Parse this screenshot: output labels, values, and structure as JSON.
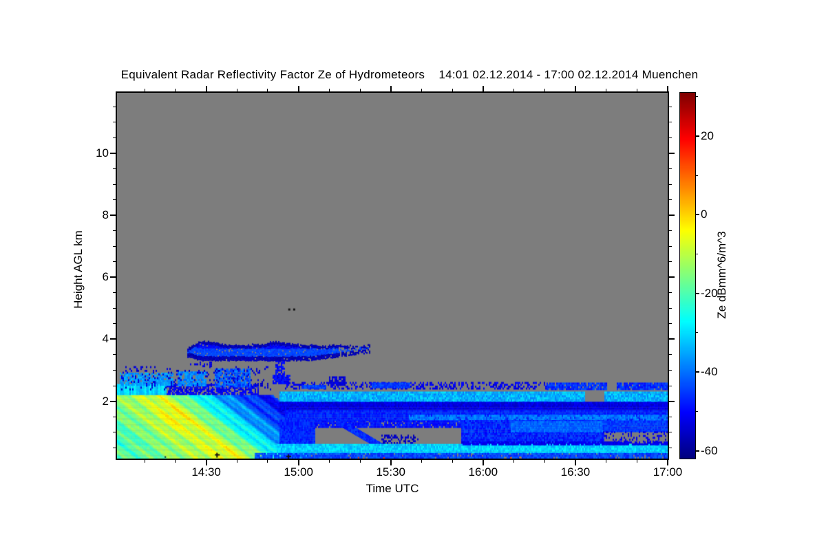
{
  "page": {
    "background": "#ffffff"
  },
  "chart_data": {
    "type": "heatmap",
    "title": "Equivalent Radar Reflectivity Factor Ze of Hydrometeors    14:01 02.12.2014 - 17:00 02.12.2014 Muenchen",
    "station": "Muenchen",
    "time_start": "14:01 02.12.2014",
    "time_end": "17:00 02.12.2014",
    "xlabel": "Time UTC",
    "ylabel": "Height AGL km",
    "x_axis": {
      "start_minutes": 0,
      "end_minutes": 179,
      "tick_labels": [
        "14:30",
        "15:00",
        "15:30",
        "16:00",
        "16:30",
        "17:00"
      ],
      "tick_minutes": [
        29,
        59,
        89,
        119,
        149,
        179
      ],
      "minor_first_minute": 9,
      "minor_step_minutes": 10
    },
    "y_axis": {
      "min_km": 0.15,
      "max_km": 11.95,
      "tick_labels": [
        "2",
        "4",
        "6",
        "8",
        "10"
      ],
      "tick_values": [
        2,
        4,
        6,
        8,
        10
      ],
      "minor_step_km": 0.5
    },
    "colorbar": {
      "label": "Ze dBmm^6/m^3",
      "min": -62,
      "max": 31,
      "tick_values": [
        20,
        0,
        -20,
        -40,
        -60
      ],
      "tick_labels": [
        "20",
        "0",
        "-20",
        "-40",
        "-60"
      ],
      "minor_tick_values": [
        30,
        10,
        -10,
        -30,
        -50
      ],
      "colormap": "jet"
    },
    "no_signal_color": "#7d7d7d",
    "axis_color": "#000000",
    "grid": false,
    "features": [
      {
        "name": "precip-fallstreak-wedge",
        "type": "wedge",
        "t": [
          0,
          62
        ],
        "h": [
          0.15,
          2.52
        ],
        "slope_min_per_km": 13,
        "profile": [
          [
            -40,
            -21
          ],
          [
            -22,
            -21
          ],
          [
            8,
            -7
          ],
          [
            26,
            -33
          ],
          [
            40,
            -48
          ],
          [
            70,
            -52
          ]
        ],
        "bump": {
          "t": 18,
          "h": 1.4,
          "amp": 4.5
        },
        "top_band_h": 2.18,
        "hole_t": 62,
        "hole_h": 1.36,
        "fade_te": 46,
        "seed": 11
      },
      {
        "name": "cyan-layer-2km",
        "type": "band",
        "t": [
          53,
          179
        ],
        "h": [
          1.95,
          2.3
        ],
        "db": -34,
        "var": 5,
        "gaps": [
          [
            152,
            158
          ]
        ],
        "seed": 21
      },
      {
        "name": "dark-blue-layer",
        "type": "band",
        "t": [
          53,
          179
        ],
        "h": [
          1.68,
          1.95
        ],
        "db": -53,
        "var": 3,
        "seed": 22
      },
      {
        "name": "mid-blue-layer",
        "type": "band",
        "t": [
          55,
          179
        ],
        "h": [
          1.35,
          1.68
        ],
        "db": -47,
        "var": 3,
        "seed": 23
      },
      {
        "name": "cyan-streak-15km",
        "type": "band",
        "t": [
          95,
          179
        ],
        "h": [
          1.38,
          1.56
        ],
        "db": -39,
        "var": 3,
        "gap_prob": 0.15,
        "seed": 24
      },
      {
        "name": "lower-blue-left",
        "type": "band",
        "t": [
          53,
          64
        ],
        "h": [
          0.5,
          1.35
        ],
        "db": -47,
        "var": 3,
        "seed": 25
      },
      {
        "name": "lower-top-edge",
        "type": "band",
        "t": [
          64,
          115
        ],
        "h": [
          1.14,
          1.35
        ],
        "db": -49,
        "var": 3,
        "gap_prob": 0.12,
        "seed": 26
      },
      {
        "name": "hole-diagonal-streak",
        "type": "diag",
        "from": [
          72,
          1.32
        ],
        "to": [
          86,
          0.5
        ],
        "width_km": 0.22,
        "db": -47,
        "var": 3,
        "seed": 27
      },
      {
        "name": "hole-speckles",
        "type": "band",
        "t": [
          86,
          98
        ],
        "h": [
          0.5,
          0.9
        ],
        "db": -56,
        "var": 2,
        "gap_prob": 0.55,
        "seed": 28
      },
      {
        "name": "lower-blue-mid",
        "type": "band",
        "t": [
          112,
          158
        ],
        "h": [
          0.55,
          1.35
        ],
        "db": -47,
        "var": 4,
        "seed": 29
      },
      {
        "name": "lower-bright-mid",
        "type": "band",
        "t": [
          128,
          162
        ],
        "h": [
          1.0,
          1.32
        ],
        "db": -41,
        "var": 3,
        "seed": 30
      },
      {
        "name": "lower-right-blue",
        "type": "band",
        "t": [
          158,
          179
        ],
        "h": [
          1.0,
          1.35
        ],
        "db": -45,
        "var": 3,
        "seed": 31
      },
      {
        "name": "lower-right-speckles",
        "type": "band",
        "t": [
          158,
          179
        ],
        "h": [
          0.55,
          1.0
        ],
        "db": -52,
        "var": 2,
        "gap_prob": 0.7,
        "seed": 32
      },
      {
        "name": "bottom-cyan-stripe",
        "type": "band",
        "t": [
          52,
          179
        ],
        "h": [
          0.32,
          0.58
        ],
        "db": -31,
        "var": 4,
        "seed": 33
      },
      {
        "name": "bottom-edge-layer",
        "type": "band",
        "t": [
          45,
          179
        ],
        "h": [
          0.15,
          0.32
        ],
        "db": -44,
        "var": 4,
        "gap_prob": 0.06,
        "seed": 34
      },
      {
        "name": "bottom-dark-row",
        "type": "band",
        "t": [
          112,
          179
        ],
        "h": [
          0.58,
          0.68
        ],
        "db": -52,
        "var": 2,
        "gap_prob": 0.2,
        "seed": 35
      },
      {
        "name": "thin-25km-speckle",
        "type": "band",
        "t": [
          55,
          140
        ],
        "h": [
          2.38,
          2.58
        ],
        "db": -52,
        "var": 3,
        "gap_prob": 0.55,
        "seed": 36
      },
      {
        "name": "thin-25km-bright-a",
        "type": "band",
        "t": [
          60,
          68
        ],
        "h": [
          2.4,
          2.52
        ],
        "db": -44,
        "var": 3,
        "seed": 37
      },
      {
        "name": "thin-25km-bright-b",
        "type": "band",
        "t": [
          83,
          95
        ],
        "h": [
          2.42,
          2.55
        ],
        "db": -45,
        "var": 3,
        "seed": 38
      },
      {
        "name": "thin-25km-right",
        "type": "band",
        "t": [
          140,
          179
        ],
        "h": [
          2.36,
          2.6
        ],
        "db": -46,
        "var": 4,
        "gap_prob": 0.12,
        "gaps": [
          [
            159,
            162
          ]
        ],
        "seed": 39
      },
      {
        "name": "broken-mid-blob-1",
        "type": "band",
        "t": [
          1,
          18
        ],
        "h": [
          2.5,
          2.92
        ],
        "db": -36,
        "var": 4,
        "gap_prob": 0.18,
        "seed": 40
      },
      {
        "name": "broken-mid-blob-2",
        "type": "band",
        "t": [
          20,
          29
        ],
        "h": [
          2.48,
          2.95
        ],
        "db": -38,
        "var": 4,
        "gap_prob": 0.15,
        "seed": 41
      },
      {
        "name": "broken-mid-blob-3",
        "type": "band",
        "t": [
          32,
          43
        ],
        "h": [
          2.45,
          3.0
        ],
        "db": -42,
        "var": 5,
        "gap_prob": 0.15,
        "seed": 42
      },
      {
        "name": "broken-mid-blob-4",
        "type": "band",
        "t": [
          51,
          56
        ],
        "h": [
          2.55,
          2.85
        ],
        "db": -50,
        "var": 3,
        "gap_prob": 0.2,
        "seed": 43
      },
      {
        "name": "broken-mid-blob-5",
        "type": "band",
        "t": [
          69,
          74
        ],
        "h": [
          2.5,
          2.75
        ],
        "db": -54,
        "var": 2,
        "gap_prob": 0.25,
        "seed": 44
      },
      {
        "name": "mid-fringe-speckles",
        "type": "band",
        "t": [
          1,
          50
        ],
        "h": [
          2.35,
          3.08
        ],
        "db": -54,
        "var": 2,
        "gap_prob": 0.87,
        "seed": 45
      },
      {
        "name": "vertical-connector",
        "type": "band",
        "t": [
          51.5,
          54.5
        ],
        "h": [
          2.6,
          3.3
        ],
        "db": -50,
        "var": 3,
        "gap_prob": 0.25,
        "seed": 46
      },
      {
        "name": "under-cloud-speckles",
        "type": "band",
        "t": [
          24,
          31
        ],
        "h": [
          3.1,
          3.28
        ],
        "db": -53,
        "var": 2,
        "gap_prob": 0.72,
        "seed": 47
      },
      {
        "name": "midlevel-cloud",
        "type": "blob",
        "t": [
          23,
          82
        ],
        "base_top": 3.78,
        "base_bottom": 3.3,
        "bumps": [
          [
            28,
            5,
            0.14
          ],
          [
            52,
            6,
            0.1
          ]
        ],
        "tail_start": 62,
        "tail_rise": 0.012,
        "taper_before": 27,
        "db": -50,
        "core_db": -44,
        "fringe_db": -57,
        "broken_after": 72,
        "seed": 48
      },
      {
        "name": "five-km-dots",
        "type": "dots",
        "points": [
          {
            "t": 56,
            "h": 4.96,
            "size": 3
          },
          {
            "t": 57.6,
            "h": 4.96,
            "size": 3
          }
        ]
      },
      {
        "name": "surface-marks",
        "type": "dots",
        "points": [
          {
            "t": 15.7,
            "h": 0.2,
            "size": 2
          },
          {
            "t": 32.5,
            "h": 0.27,
            "shape": "plus"
          },
          {
            "t": 55.7,
            "h": 0.22,
            "shape": "plus"
          },
          {
            "t": 78.5,
            "h": 0.18,
            "db": 14,
            "size": 2
          },
          {
            "t": 80.2,
            "h": 0.16,
            "db": 10,
            "size": 2
          },
          {
            "t": 86.8,
            "h": 0.17,
            "db": 16,
            "size": 2
          },
          {
            "t": 128,
            "h": 0.17,
            "db": 12,
            "size": 2
          },
          {
            "t": 131,
            "h": 0.19,
            "db": 8,
            "size": 2
          }
        ]
      }
    ]
  }
}
